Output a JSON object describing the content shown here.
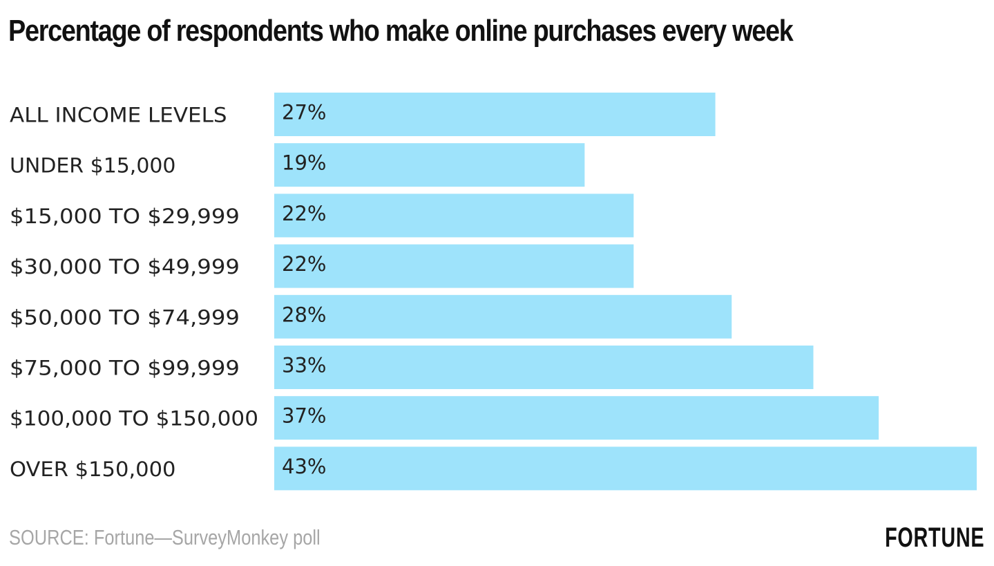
{
  "chart_data": {
    "type": "bar",
    "orientation": "horizontal",
    "title": "Percentage of respondents who make online purchases every week",
    "categories": [
      "ALL INCOME LEVELS",
      "UNDER $15,000",
      "$15,000 TO $29,999",
      "$30,000 TO $49,999",
      "$50,000 TO $74,999",
      "$75,000 TO $99,999",
      "$100,000 TO $150,000",
      "OVER $150,000"
    ],
    "values": [
      27,
      19,
      22,
      22,
      28,
      33,
      37,
      43
    ],
    "value_labels": [
      "27%",
      "19%",
      "22%",
      "22%",
      "28%",
      "33%",
      "37%",
      "43%"
    ],
    "xlim": [
      0,
      43
    ],
    "grid": false,
    "bar_color": "#9ee3fb"
  },
  "source": "SOURCE: Fortune—SurveyMonkey poll",
  "logo": "FORTUNE"
}
